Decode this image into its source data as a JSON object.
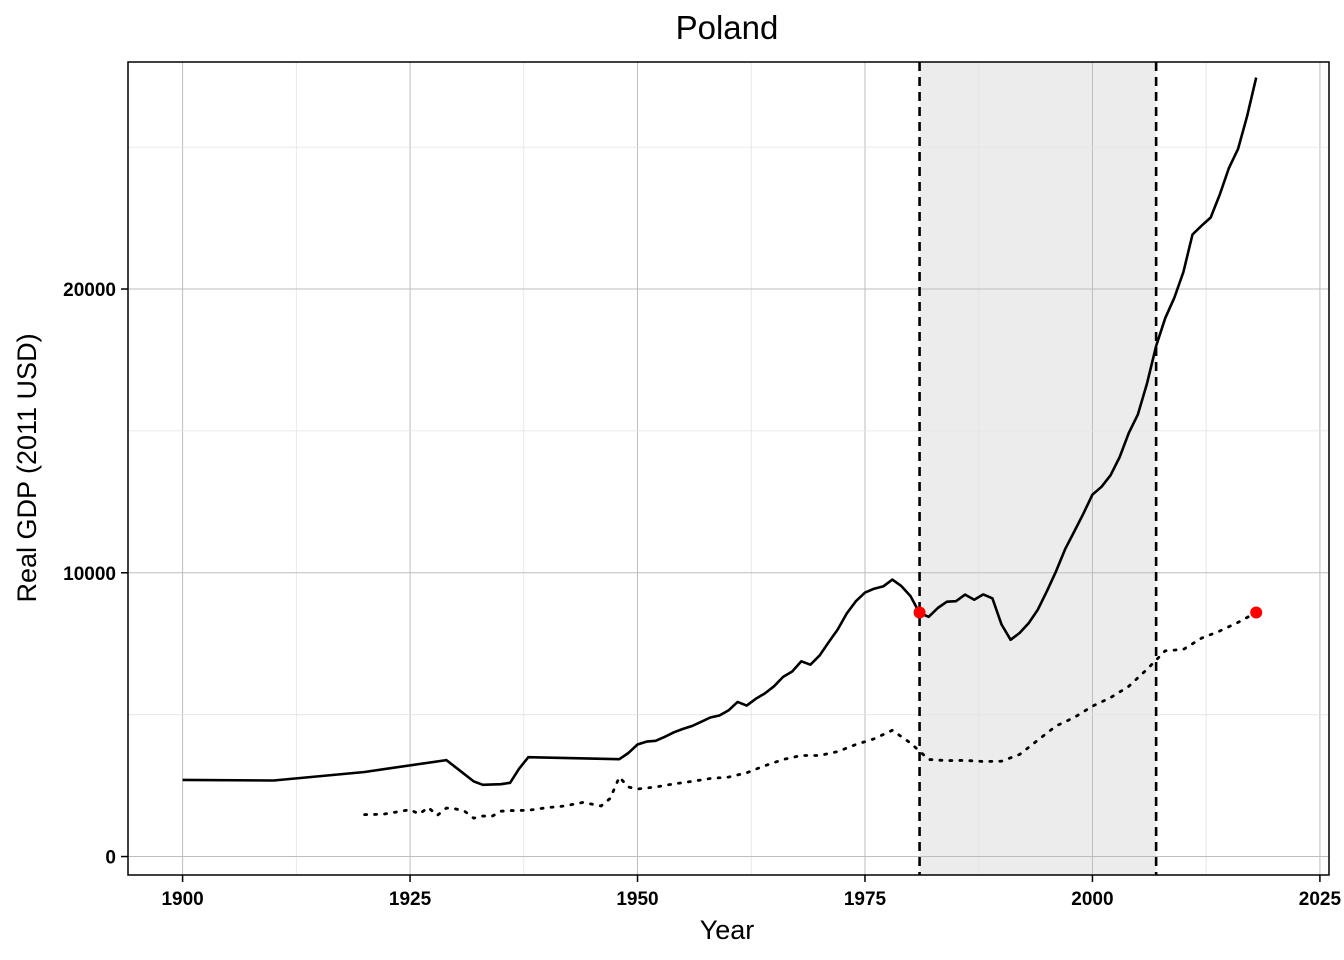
{
  "chart_data": {
    "type": "line",
    "title": "Poland",
    "xlabel": "Year",
    "ylabel": "Real GDP (2011 USD)",
    "xlim": [
      1894,
      2026
    ],
    "ylim": [
      -650,
      28000
    ],
    "x_ticks": [
      1900,
      1925,
      1950,
      1975,
      2000,
      2025
    ],
    "y_ticks": [
      0,
      10000,
      20000
    ],
    "grid": true,
    "legend": "none",
    "shaded_region": {
      "x_start": 1981,
      "x_end": 2007,
      "color": "#ececec"
    },
    "vertical_lines": [
      {
        "x": 1981,
        "style": "dashed"
      },
      {
        "x": 2007,
        "style": "dashed"
      }
    ],
    "series": [
      {
        "style": "solid",
        "color": "#000000",
        "points": [
          [
            1900,
            2700
          ],
          [
            1910,
            2680
          ],
          [
            1920,
            2980
          ],
          [
            1929,
            3400
          ],
          [
            1930,
            3150
          ],
          [
            1932,
            2650
          ],
          [
            1933,
            2530
          ],
          [
            1935,
            2550
          ],
          [
            1936,
            2600
          ],
          [
            1937,
            3100
          ],
          [
            1938,
            3500
          ],
          [
            1948,
            3430
          ],
          [
            1949,
            3650
          ],
          [
            1950,
            3950
          ],
          [
            1951,
            4050
          ],
          [
            1952,
            4080
          ],
          [
            1953,
            4220
          ],
          [
            1954,
            4380
          ],
          [
            1955,
            4500
          ],
          [
            1956,
            4600
          ],
          [
            1957,
            4750
          ],
          [
            1958,
            4900
          ],
          [
            1959,
            4970
          ],
          [
            1960,
            5150
          ],
          [
            1961,
            5450
          ],
          [
            1962,
            5320
          ],
          [
            1963,
            5560
          ],
          [
            1964,
            5750
          ],
          [
            1965,
            6000
          ],
          [
            1966,
            6330
          ],
          [
            1967,
            6520
          ],
          [
            1968,
            6880
          ],
          [
            1969,
            6760
          ],
          [
            1970,
            7080
          ],
          [
            1971,
            7550
          ],
          [
            1972,
            8000
          ],
          [
            1973,
            8570
          ],
          [
            1974,
            9000
          ],
          [
            1975,
            9300
          ],
          [
            1976,
            9440
          ],
          [
            1977,
            9520
          ],
          [
            1978,
            9760
          ],
          [
            1979,
            9530
          ],
          [
            1980,
            9180
          ],
          [
            1981,
            8580
          ],
          [
            1982,
            8450
          ],
          [
            1983,
            8760
          ],
          [
            1984,
            8980
          ],
          [
            1985,
            9000
          ],
          [
            1986,
            9230
          ],
          [
            1987,
            9050
          ],
          [
            1988,
            9240
          ],
          [
            1989,
            9100
          ],
          [
            1990,
            8180
          ],
          [
            1991,
            7640
          ],
          [
            1992,
            7880
          ],
          [
            1993,
            8230
          ],
          [
            1994,
            8700
          ],
          [
            1995,
            9350
          ],
          [
            1996,
            10050
          ],
          [
            1997,
            10830
          ],
          [
            1998,
            11450
          ],
          [
            1999,
            12080
          ],
          [
            2000,
            12750
          ],
          [
            2001,
            13030
          ],
          [
            2002,
            13440
          ],
          [
            2003,
            14080
          ],
          [
            2004,
            14930
          ],
          [
            2005,
            15580
          ],
          [
            2006,
            16670
          ],
          [
            2007,
            17990
          ],
          [
            2008,
            18970
          ],
          [
            2009,
            19690
          ],
          [
            2010,
            20600
          ],
          [
            2011,
            21920
          ],
          [
            2012,
            22230
          ],
          [
            2013,
            22520
          ],
          [
            2014,
            23330
          ],
          [
            2015,
            24260
          ],
          [
            2016,
            24930
          ],
          [
            2017,
            26090
          ],
          [
            2018,
            27450
          ]
        ]
      },
      {
        "style": "dotted",
        "color": "#000000",
        "points": [
          [
            1920,
            1480
          ],
          [
            1922,
            1490
          ],
          [
            1924,
            1600
          ],
          [
            1925,
            1650
          ],
          [
            1926,
            1500
          ],
          [
            1927,
            1730
          ],
          [
            1928,
            1450
          ],
          [
            1929,
            1710
          ],
          [
            1930,
            1680
          ],
          [
            1931,
            1600
          ],
          [
            1932,
            1350
          ],
          [
            1933,
            1430
          ],
          [
            1934,
            1420
          ],
          [
            1935,
            1600
          ],
          [
            1936,
            1620
          ],
          [
            1938,
            1630
          ],
          [
            1940,
            1720
          ],
          [
            1942,
            1780
          ],
          [
            1944,
            1910
          ],
          [
            1946,
            1780
          ],
          [
            1947,
            2050
          ],
          [
            1948,
            2800
          ],
          [
            1949,
            2450
          ],
          [
            1950,
            2380
          ],
          [
            1952,
            2450
          ],
          [
            1954,
            2560
          ],
          [
            1956,
            2650
          ],
          [
            1958,
            2750
          ],
          [
            1960,
            2800
          ],
          [
            1962,
            2950
          ],
          [
            1964,
            3200
          ],
          [
            1966,
            3420
          ],
          [
            1968,
            3560
          ],
          [
            1970,
            3560
          ],
          [
            1972,
            3700
          ],
          [
            1974,
            3950
          ],
          [
            1976,
            4150
          ],
          [
            1978,
            4450
          ],
          [
            1980,
            4000
          ],
          [
            1982,
            3420
          ],
          [
            1984,
            3380
          ],
          [
            1986,
            3390
          ],
          [
            1988,
            3350
          ],
          [
            1990,
            3360
          ],
          [
            1992,
            3600
          ],
          [
            1994,
            4100
          ],
          [
            1996,
            4600
          ],
          [
            1998,
            4900
          ],
          [
            2000,
            5300
          ],
          [
            2002,
            5600
          ],
          [
            2004,
            6000
          ],
          [
            2006,
            6600
          ],
          [
            2008,
            7250
          ],
          [
            2010,
            7300
          ],
          [
            2012,
            7700
          ],
          [
            2014,
            7950
          ],
          [
            2016,
            8250
          ],
          [
            2018,
            8600
          ]
        ]
      }
    ],
    "highlight_points": [
      {
        "x": 1981,
        "y": 8600,
        "color": "#ff0000"
      },
      {
        "x": 2018,
        "y": 8600,
        "color": "#ff0000"
      }
    ]
  }
}
